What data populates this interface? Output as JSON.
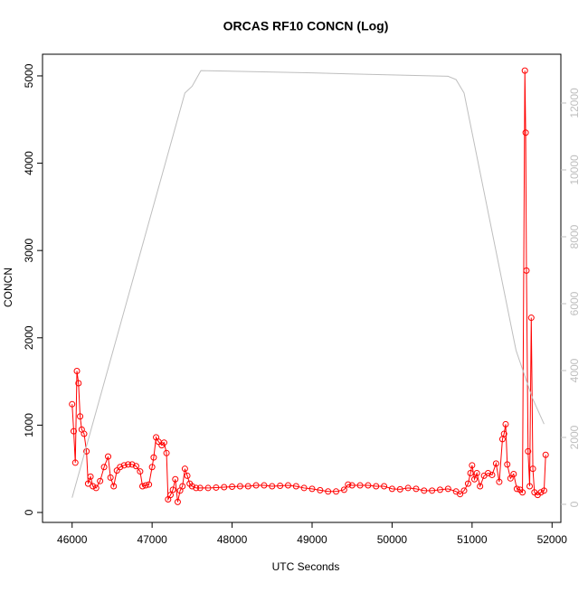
{
  "chart_data": {
    "type": "line",
    "title": "ORCAS RF10 CONCN (Log)",
    "x_label": "UTC Seconds",
    "y_label": "CONCN",
    "xlim": [
      45630,
      52110
    ],
    "xticks": [
      46000,
      47000,
      48000,
      49000,
      50000,
      51000,
      52000
    ],
    "ylim": [
      -114,
      5248
    ],
    "yticks": [
      0,
      1000,
      2000,
      3000,
      4000,
      5000
    ],
    "y2lim": [
      -541,
      13459
    ],
    "y2ticks": [
      0,
      2000,
      4000,
      6000,
      8000,
      10000,
      12000
    ],
    "series": [
      {
        "color": "#ff0000",
        "markers": true,
        "x": [
          46000,
          46020,
          46040,
          46060,
          46080,
          46100,
          46120,
          46150,
          46180,
          46200,
          46230,
          46260,
          46300,
          46350,
          46400,
          46450,
          46480,
          46520,
          46560,
          46600,
          46650,
          46700,
          46750,
          46800,
          46850,
          46880,
          46920,
          46960,
          47000,
          47020,
          47050,
          47080,
          47120,
          47150,
          47180,
          47200,
          47230,
          47260,
          47290,
          47320,
          47350,
          47380,
          47410,
          47440,
          47470,
          47500,
          47550,
          47600,
          47700,
          47800,
          47900,
          48000,
          48100,
          48200,
          48300,
          48400,
          48500,
          48600,
          48700,
          48800,
          48900,
          49000,
          49100,
          49200,
          49300,
          49400,
          49450,
          49500,
          49600,
          49700,
          49800,
          49900,
          50000,
          50100,
          50200,
          50300,
          50400,
          50500,
          50600,
          50700,
          50800,
          50850,
          50900,
          50950,
          50980,
          51000,
          51030,
          51060,
          51100,
          51150,
          51200,
          51250,
          51300,
          51340,
          51380,
          51400,
          51420,
          51440,
          51480,
          51520,
          51560,
          51600,
          51630,
          51660,
          51670,
          51680,
          51700,
          51720,
          51740,
          51760,
          51780,
          51820,
          51860,
          51900,
          51920
        ],
        "values": [
          1240,
          930,
          570,
          1620,
          1480,
          1100,
          950,
          900,
          700,
          330,
          410,
          300,
          280,
          360,
          520,
          640,
          400,
          300,
          480,
          520,
          540,
          550,
          550,
          530,
          470,
          300,
          310,
          320,
          520,
          630,
          860,
          810,
          770,
          800,
          680,
          150,
          200,
          260,
          380,
          120,
          250,
          300,
          500,
          420,
          330,
          300,
          280,
          280,
          280,
          285,
          290,
          295,
          300,
          300,
          310,
          310,
          300,
          305,
          310,
          300,
          280,
          270,
          255,
          240,
          240,
          260,
          320,
          310,
          310,
          310,
          300,
          300,
          270,
          265,
          280,
          270,
          250,
          250,
          260,
          270,
          240,
          210,
          250,
          330,
          450,
          540,
          380,
          450,
          300,
          420,
          450,
          430,
          560,
          350,
          840,
          900,
          1010,
          550,
          390,
          440,
          270,
          260,
          230,
          5060,
          4350,
          2770,
          700,
          300,
          2230,
          500,
          230,
          200,
          230,
          250,
          660
        ]
      },
      {
        "color": "#bebebe",
        "axis": "y2",
        "markers": false,
        "x": [
          46000,
          47410,
          47500,
          47610,
          49000,
          50700,
          50800,
          50900,
          51550,
          51750,
          51900
        ],
        "values": [
          200,
          12300,
          12500,
          12970,
          12900,
          12800,
          12700,
          12300,
          4600,
          3200,
          2400
        ]
      }
    ]
  }
}
